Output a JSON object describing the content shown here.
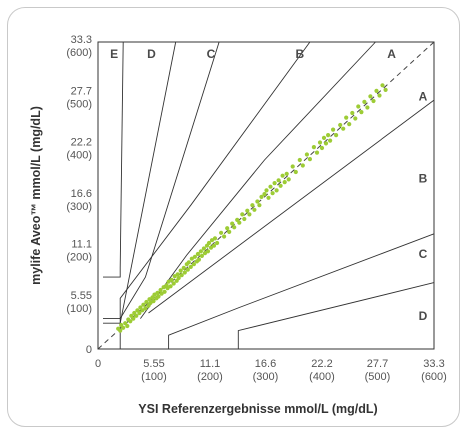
{
  "chart_data": {
    "type": "scatter",
    "xlabel": "YSI Referenzergebnisse mmol/L (mg/dL)",
    "ylabel": "mylife Aveo™ mmol/L (mg/dL)",
    "xlim": [
      0,
      33.3
    ],
    "ylim": [
      0,
      33.3
    ],
    "x_ticks": [
      {
        "value": 0,
        "label": "0",
        "sub": ""
      },
      {
        "value": 5.55,
        "label": "5.55",
        "sub": "(100)"
      },
      {
        "value": 11.1,
        "label": "11.1",
        "sub": "(200)"
      },
      {
        "value": 16.6,
        "label": "16.6",
        "sub": "(300)"
      },
      {
        "value": 22.2,
        "label": "22.2",
        "sub": "(400)"
      },
      {
        "value": 27.7,
        "label": "27.7",
        "sub": "(500)"
      },
      {
        "value": 33.3,
        "label": "33.3",
        "sub": "(600)"
      }
    ],
    "y_ticks": [
      {
        "value": 0,
        "label": "0",
        "sub": ""
      },
      {
        "value": 5.55,
        "label": "5.55",
        "sub": "(100)"
      },
      {
        "value": 11.1,
        "label": "11.1",
        "sub": "(200)"
      },
      {
        "value": 16.6,
        "label": "16.6",
        "sub": "(300)"
      },
      {
        "value": 22.2,
        "label": "22.2",
        "sub": "(400)"
      },
      {
        "value": 27.7,
        "label": "27.7",
        "sub": "(500)"
      },
      {
        "value": 33.3,
        "label": "33.3",
        "sub": "(600)"
      }
    ],
    "zone_labels": [
      {
        "text": "E",
        "x": 1.6,
        "y": 32.0
      },
      {
        "text": "D",
        "x": 5.3,
        "y": 32.0
      },
      {
        "text": "C",
        "x": 11.2,
        "y": 32.0
      },
      {
        "text": "B",
        "x": 20.0,
        "y": 32.0
      },
      {
        "text": "A",
        "x": 29.1,
        "y": 32.0
      },
      {
        "text": "A",
        "x": 32.2,
        "y": 27.4
      },
      {
        "text": "B",
        "x": 32.2,
        "y": 18.5
      },
      {
        "text": "C",
        "x": 32.2,
        "y": 10.3
      },
      {
        "text": "D",
        "x": 32.2,
        "y": 3.6
      }
    ],
    "zone_lines": [
      [
        [
          0.5,
          7.8
        ],
        [
          2.2,
          7.8
        ],
        [
          2.2,
          8.8
        ],
        [
          2.5,
          33.3
        ]
      ],
      [
        [
          0.5,
          2.8
        ],
        [
          2.2,
          2.8
        ],
        [
          7.7,
          33.3
        ]
      ],
      [
        [
          0.5,
          3.3
        ],
        [
          2.2,
          3.3
        ],
        [
          4.7,
          7.8
        ],
        [
          12.0,
          33.3
        ]
      ],
      [
        [
          2.2,
          0
        ],
        [
          2.2,
          5.5
        ],
        [
          9.2,
          15.6
        ],
        [
          21.0,
          33.3
        ]
      ],
      [
        [
          4.2,
          3.3
        ],
        [
          8.8,
          10.2
        ],
        [
          16.5,
          20.5
        ],
        [
          27.5,
          33.3
        ]
      ],
      [
        [
          5.0,
          3.9
        ],
        [
          33.3,
          27.0
        ]
      ],
      [
        [
          7.0,
          0
        ],
        [
          7.0,
          1.5
        ],
        [
          14.0,
          4.5
        ],
        [
          33.3,
          12.5
        ]
      ],
      [
        [
          13.9,
          0
        ],
        [
          13.9,
          2.0
        ],
        [
          33.3,
          7.2
        ]
      ]
    ],
    "identity_line": [
      [
        0,
        0
      ],
      [
        33.3,
        33.3
      ]
    ],
    "series_color": "#9dcc35",
    "series": [
      {
        "values": [
          [
            2.0,
            2.2
          ],
          [
            2.2,
            2.0
          ],
          [
            2.3,
            2.6
          ],
          [
            2.5,
            2.3
          ],
          [
            2.7,
            2.8
          ],
          [
            2.9,
            2.5
          ],
          [
            3.0,
            3.2
          ],
          [
            3.2,
            3.0
          ],
          [
            3.3,
            3.6
          ],
          [
            3.5,
            3.3
          ],
          [
            3.6,
            3.9
          ],
          [
            3.8,
            3.6
          ],
          [
            3.9,
            4.2
          ],
          [
            4.1,
            3.9
          ],
          [
            4.2,
            4.5
          ],
          [
            4.4,
            4.2
          ],
          [
            4.5,
            4.8
          ],
          [
            4.7,
            4.4
          ],
          [
            4.8,
            5.1
          ],
          [
            5.0,
            4.7
          ],
          [
            5.1,
            5.4
          ],
          [
            5.2,
            5.0
          ],
          [
            5.4,
            5.6
          ],
          [
            5.5,
            5.2
          ],
          [
            5.6,
            5.9
          ],
          [
            5.8,
            5.5
          ],
          [
            5.9,
            6.1
          ],
          [
            6.0,
            5.7
          ],
          [
            6.2,
            6.4
          ],
          [
            6.3,
            6.0
          ],
          [
            6.5,
            6.7
          ],
          [
            6.6,
            6.2
          ],
          [
            6.8,
            6.9
          ],
          [
            6.9,
            6.6
          ],
          [
            7.0,
            7.3
          ],
          [
            7.2,
            6.8
          ],
          [
            7.3,
            7.5
          ],
          [
            7.5,
            7.1
          ],
          [
            7.6,
            7.9
          ],
          [
            7.8,
            7.4
          ],
          [
            7.9,
            8.1
          ],
          [
            8.0,
            7.7
          ],
          [
            8.2,
            8.5
          ],
          [
            8.3,
            8.0
          ],
          [
            8.5,
            8.8
          ],
          [
            8.6,
            8.3
          ],
          [
            8.8,
            9.2
          ],
          [
            8.9,
            8.6
          ],
          [
            9.0,
            9.4
          ],
          [
            9.2,
            8.9
          ],
          [
            9.3,
            9.8
          ],
          [
            9.5,
            9.2
          ],
          [
            9.6,
            10.0
          ],
          [
            9.8,
            9.5
          ],
          [
            9.9,
            10.3
          ],
          [
            10.0,
            9.7
          ],
          [
            10.2,
            10.6
          ],
          [
            10.3,
            10.1
          ],
          [
            10.5,
            10.9
          ],
          [
            10.6,
            10.4
          ],
          [
            10.8,
            11.2
          ],
          [
            10.9,
            10.6
          ],
          [
            11.0,
            11.5
          ],
          [
            11.2,
            11.0
          ],
          [
            11.3,
            11.8
          ],
          [
            11.5,
            11.2
          ],
          [
            11.6,
            12.0
          ],
          [
            11.8,
            11.5
          ],
          [
            12.2,
            12.6
          ],
          [
            12.5,
            12.2
          ],
          [
            12.8,
            13.1
          ],
          [
            13.0,
            12.7
          ],
          [
            13.3,
            13.6
          ],
          [
            13.5,
            13.2
          ],
          [
            13.8,
            14.0
          ],
          [
            14.0,
            13.7
          ],
          [
            14.3,
            14.6
          ],
          [
            14.5,
            14.1
          ],
          [
            14.8,
            15.0
          ],
          [
            15.0,
            14.6
          ],
          [
            15.3,
            15.6
          ],
          [
            15.5,
            15.1
          ],
          [
            15.8,
            16.0
          ],
          [
            16.0,
            15.6
          ],
          [
            16.2,
            16.5
          ],
          [
            16.5,
            16.8
          ],
          [
            16.7,
            17.2
          ],
          [
            16.9,
            16.4
          ],
          [
            17.1,
            17.6
          ],
          [
            17.3,
            16.9
          ],
          [
            17.5,
            18.0
          ],
          [
            17.7,
            17.2
          ],
          [
            17.9,
            18.3
          ],
          [
            18.1,
            17.7
          ],
          [
            18.3,
            18.8
          ],
          [
            18.5,
            18.1
          ],
          [
            18.7,
            19.0
          ],
          [
            18.9,
            18.4
          ],
          [
            19.3,
            19.8
          ],
          [
            19.6,
            19.2
          ],
          [
            20.0,
            20.5
          ],
          [
            20.3,
            19.9
          ],
          [
            20.7,
            21.1
          ],
          [
            21.0,
            20.6
          ],
          [
            21.4,
            21.9
          ],
          [
            21.7,
            21.3
          ],
          [
            22.0,
            22.4
          ],
          [
            22.2,
            21.8
          ],
          [
            22.4,
            22.9
          ],
          [
            22.6,
            22.3
          ],
          [
            22.8,
            23.2
          ],
          [
            23.0,
            22.6
          ],
          [
            23.3,
            23.8
          ],
          [
            23.6,
            23.2
          ],
          [
            24.0,
            24.3
          ],
          [
            24.3,
            23.9
          ],
          [
            24.6,
            25.1
          ],
          [
            24.9,
            24.4
          ],
          [
            25.2,
            25.6
          ],
          [
            25.5,
            25.0
          ],
          [
            25.8,
            26.3
          ],
          [
            26.1,
            25.7
          ],
          [
            26.4,
            26.8
          ],
          [
            26.7,
            26.2
          ],
          [
            27.0,
            27.4
          ],
          [
            27.3,
            26.9
          ],
          [
            27.6,
            28.0
          ],
          [
            27.9,
            27.5
          ],
          [
            28.2,
            28.6
          ],
          [
            28.5,
            28.1
          ]
        ]
      }
    ]
  }
}
